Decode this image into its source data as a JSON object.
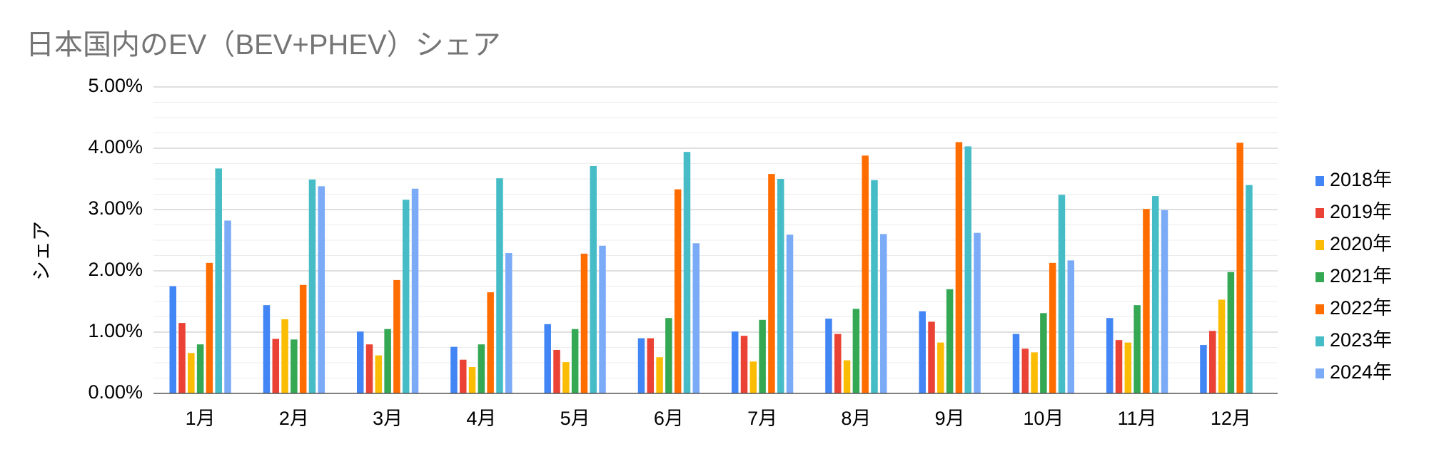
{
  "chart_data": {
    "type": "bar",
    "title": "日本国内のEV（BEV+PHEV）シェア",
    "xlabel": "",
    "ylabel": "シェア",
    "ylim": [
      0,
      0.05
    ],
    "y_ticks": [
      "0.00%",
      "1.00%",
      "2.00%",
      "3.00%",
      "4.00%",
      "5.00%"
    ],
    "grid": true,
    "legend_position": "right",
    "categories": [
      "1月",
      "2月",
      "3月",
      "4月",
      "5月",
      "6月",
      "7月",
      "8月",
      "9月",
      "10月",
      "11月",
      "12月"
    ],
    "series": [
      {
        "name": "2018年",
        "color": "#4285f4",
        "values": [
          0.0175,
          0.0144,
          0.0101,
          0.0076,
          0.0113,
          0.009,
          0.0101,
          0.0122,
          0.0134,
          0.0097,
          0.0123,
          0.0079
        ]
      },
      {
        "name": "2019年",
        "color": "#ea4335",
        "values": [
          0.0115,
          0.0089,
          0.008,
          0.0055,
          0.0071,
          0.009,
          0.0094,
          0.0097,
          0.0117,
          0.0073,
          0.0087,
          0.0102
        ]
      },
      {
        "name": "2020年",
        "color": "#fbbc04",
        "values": [
          0.0066,
          0.0121,
          0.0062,
          0.0043,
          0.0051,
          0.0059,
          0.0052,
          0.0054,
          0.0083,
          0.0067,
          0.0083,
          0.0153
        ]
      },
      {
        "name": "2021年",
        "color": "#34a853",
        "values": [
          0.008,
          0.0088,
          0.0105,
          0.008,
          0.0105,
          0.0123,
          0.012,
          0.0138,
          0.017,
          0.0131,
          0.0144,
          0.0198
        ]
      },
      {
        "name": "2022年",
        "color": "#ff6d01",
        "values": [
          0.0213,
          0.0177,
          0.0185,
          0.0165,
          0.0228,
          0.0333,
          0.0358,
          0.0388,
          0.041,
          0.0213,
          0.0301,
          0.0409
        ]
      },
      {
        "name": "2023年",
        "color": "#46bdc6",
        "values": [
          0.0367,
          0.0349,
          0.0316,
          0.0351,
          0.0371,
          0.0394,
          0.035,
          0.0348,
          0.0403,
          0.0324,
          0.0322,
          0.034
        ]
      },
      {
        "name": "2024年",
        "color": "#7baaf7",
        "values": [
          0.0282,
          0.0338,
          0.0334,
          0.0229,
          0.0241,
          0.0245,
          0.0259,
          0.026,
          0.0262,
          0.0217,
          0.0299,
          null
        ]
      }
    ]
  }
}
